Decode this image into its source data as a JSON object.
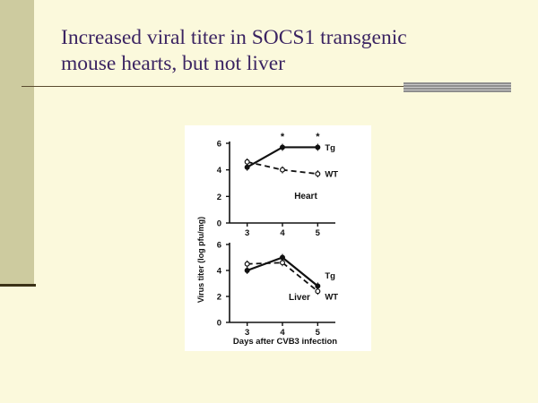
{
  "slide": {
    "title_lines": [
      "Increased viral titer in SOCS1 transgenic",
      "mouse hearts, but not liver"
    ]
  },
  "chart_data": [
    {
      "type": "line",
      "panel_label": "Heart",
      "x": [
        3,
        4,
        5
      ],
      "xlim": [
        2.5,
        5.5
      ],
      "ylim": [
        0,
        6
      ],
      "y_ticks": [
        0,
        2,
        4,
        6
      ],
      "x_ticks": [
        3,
        4,
        5
      ],
      "series": [
        {
          "name": "Tg",
          "values": [
            4.2,
            5.7,
            5.7
          ],
          "style": "solid",
          "marker": "filled"
        },
        {
          "name": "WT",
          "values": [
            4.6,
            4.0,
            3.7
          ],
          "style": "dashed",
          "marker": "open"
        }
      ],
      "significance_markers": [
        {
          "x": 4,
          "symbol": "*"
        },
        {
          "x": 5,
          "symbol": "*"
        }
      ]
    },
    {
      "type": "line",
      "panel_label": "Liver",
      "x": [
        3,
        4,
        5
      ],
      "xlim": [
        2.5,
        5.5
      ],
      "ylim": [
        0,
        6
      ],
      "y_ticks": [
        0,
        2,
        4,
        6
      ],
      "x_ticks": [
        3,
        4,
        5
      ],
      "series": [
        {
          "name": "Tg",
          "values": [
            4.0,
            5.0,
            2.8
          ],
          "style": "solid",
          "marker": "filled"
        },
        {
          "name": "WT",
          "values": [
            4.5,
            4.6,
            2.4
          ],
          "style": "dashed",
          "marker": "open"
        }
      ]
    }
  ],
  "axes": {
    "ylabel": "Virus titer (log pfu/mg)",
    "xlabel": "Days after CVB3 infection"
  }
}
